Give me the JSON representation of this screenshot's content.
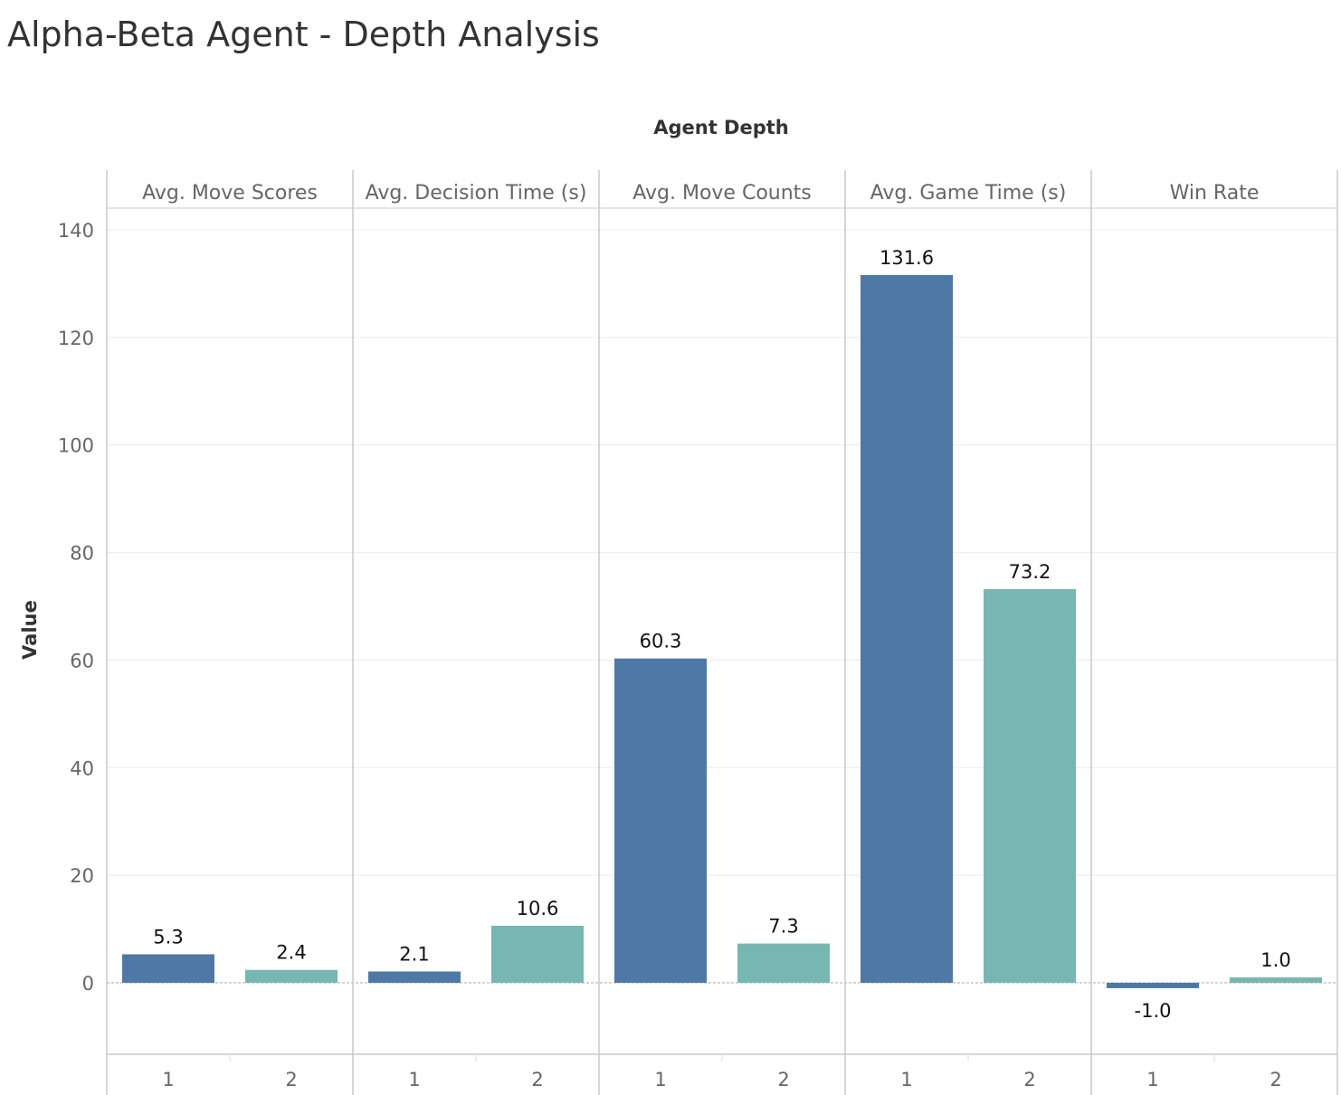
{
  "title": "Alpha-Beta Agent - Depth Analysis",
  "colors": {
    "depth_1": "#4e79a7",
    "depth_2": "#76b7b2"
  },
  "chart_data": {
    "type": "bar",
    "title": "Alpha-Beta Agent - Depth Analysis",
    "facet_label": "Agent Depth",
    "ylabel": "Value",
    "xlabel": "",
    "ylim": [
      -13,
      143
    ],
    "yticks": [
      0,
      20,
      40,
      60,
      80,
      100,
      120,
      140
    ],
    "grid": true,
    "legend": "none",
    "categories": [
      "1",
      "2"
    ],
    "panels": [
      {
        "name": "Avg. Move Scores",
        "values": [
          5.3,
          2.4
        ],
        "labels": [
          "5.3",
          "2.4"
        ]
      },
      {
        "name": "Avg. Decision Time (s)",
        "values": [
          2.1,
          10.6
        ],
        "labels": [
          "2.1",
          "10.6"
        ]
      },
      {
        "name": "Avg. Move Counts",
        "values": [
          60.3,
          7.3
        ],
        "labels": [
          "60.3",
          "7.3"
        ]
      },
      {
        "name": "Avg. Game Time (s)",
        "values": [
          131.6,
          73.2
        ],
        "labels": [
          "131.6",
          "73.2"
        ]
      },
      {
        "name": "Win Rate",
        "values": [
          -1.0,
          1.0
        ],
        "labels": [
          "-1.0",
          "1.0"
        ]
      }
    ]
  }
}
